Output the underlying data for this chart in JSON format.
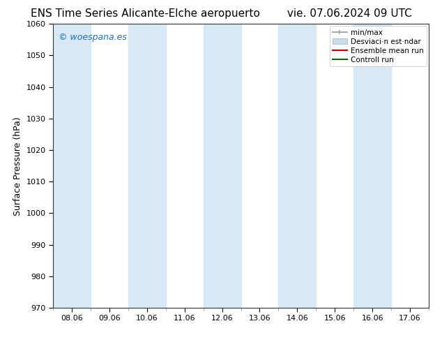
{
  "title_left": "ENS Time Series Alicante-Elche aeropuerto",
  "title_right": "vie. 07.06.2024 09 UTC",
  "ylabel": "Surface Pressure (hPa)",
  "ylim": [
    970,
    1060
  ],
  "yticks": [
    970,
    980,
    990,
    1000,
    1010,
    1020,
    1030,
    1040,
    1050,
    1060
  ],
  "xtick_labels": [
    "08.06",
    "09.06",
    "10.06",
    "11.06",
    "12.06",
    "13.06",
    "14.06",
    "15.06",
    "16.06",
    "17.06"
  ],
  "xtick_positions": [
    0,
    1,
    2,
    3,
    4,
    5,
    6,
    7,
    8,
    9
  ],
  "xlim": [
    -0.5,
    9.5
  ],
  "background_color": "#ffffff",
  "plot_bg_color": "#ffffff",
  "band_color": "#d8e8f4",
  "shaded_bands": [
    {
      "x_start": -0.5,
      "x_end": 0.5
    },
    {
      "x_start": 1.5,
      "x_end": 2.5
    },
    {
      "x_start": 3.5,
      "x_end": 4.5
    },
    {
      "x_start": 5.5,
      "x_end": 6.5
    },
    {
      "x_start": 7.5,
      "x_end": 8.5
    }
  ],
  "legend_labels": [
    "min/max",
    "Desviaci  acute;n est  acute;ndar",
    "Ensemble mean run",
    "Controll run"
  ],
  "legend_colors": [
    "#a0a0a0",
    "#c8dcea",
    "#ff0000",
    "#008000"
  ],
  "watermark": "© woespana.es",
  "watermark_color": "#1a6fcc",
  "watermark_fontsize": 9,
  "title_fontsize": 11,
  "axis_fontsize": 9,
  "tick_fontsize": 8,
  "legend_fontsize": 7.5
}
